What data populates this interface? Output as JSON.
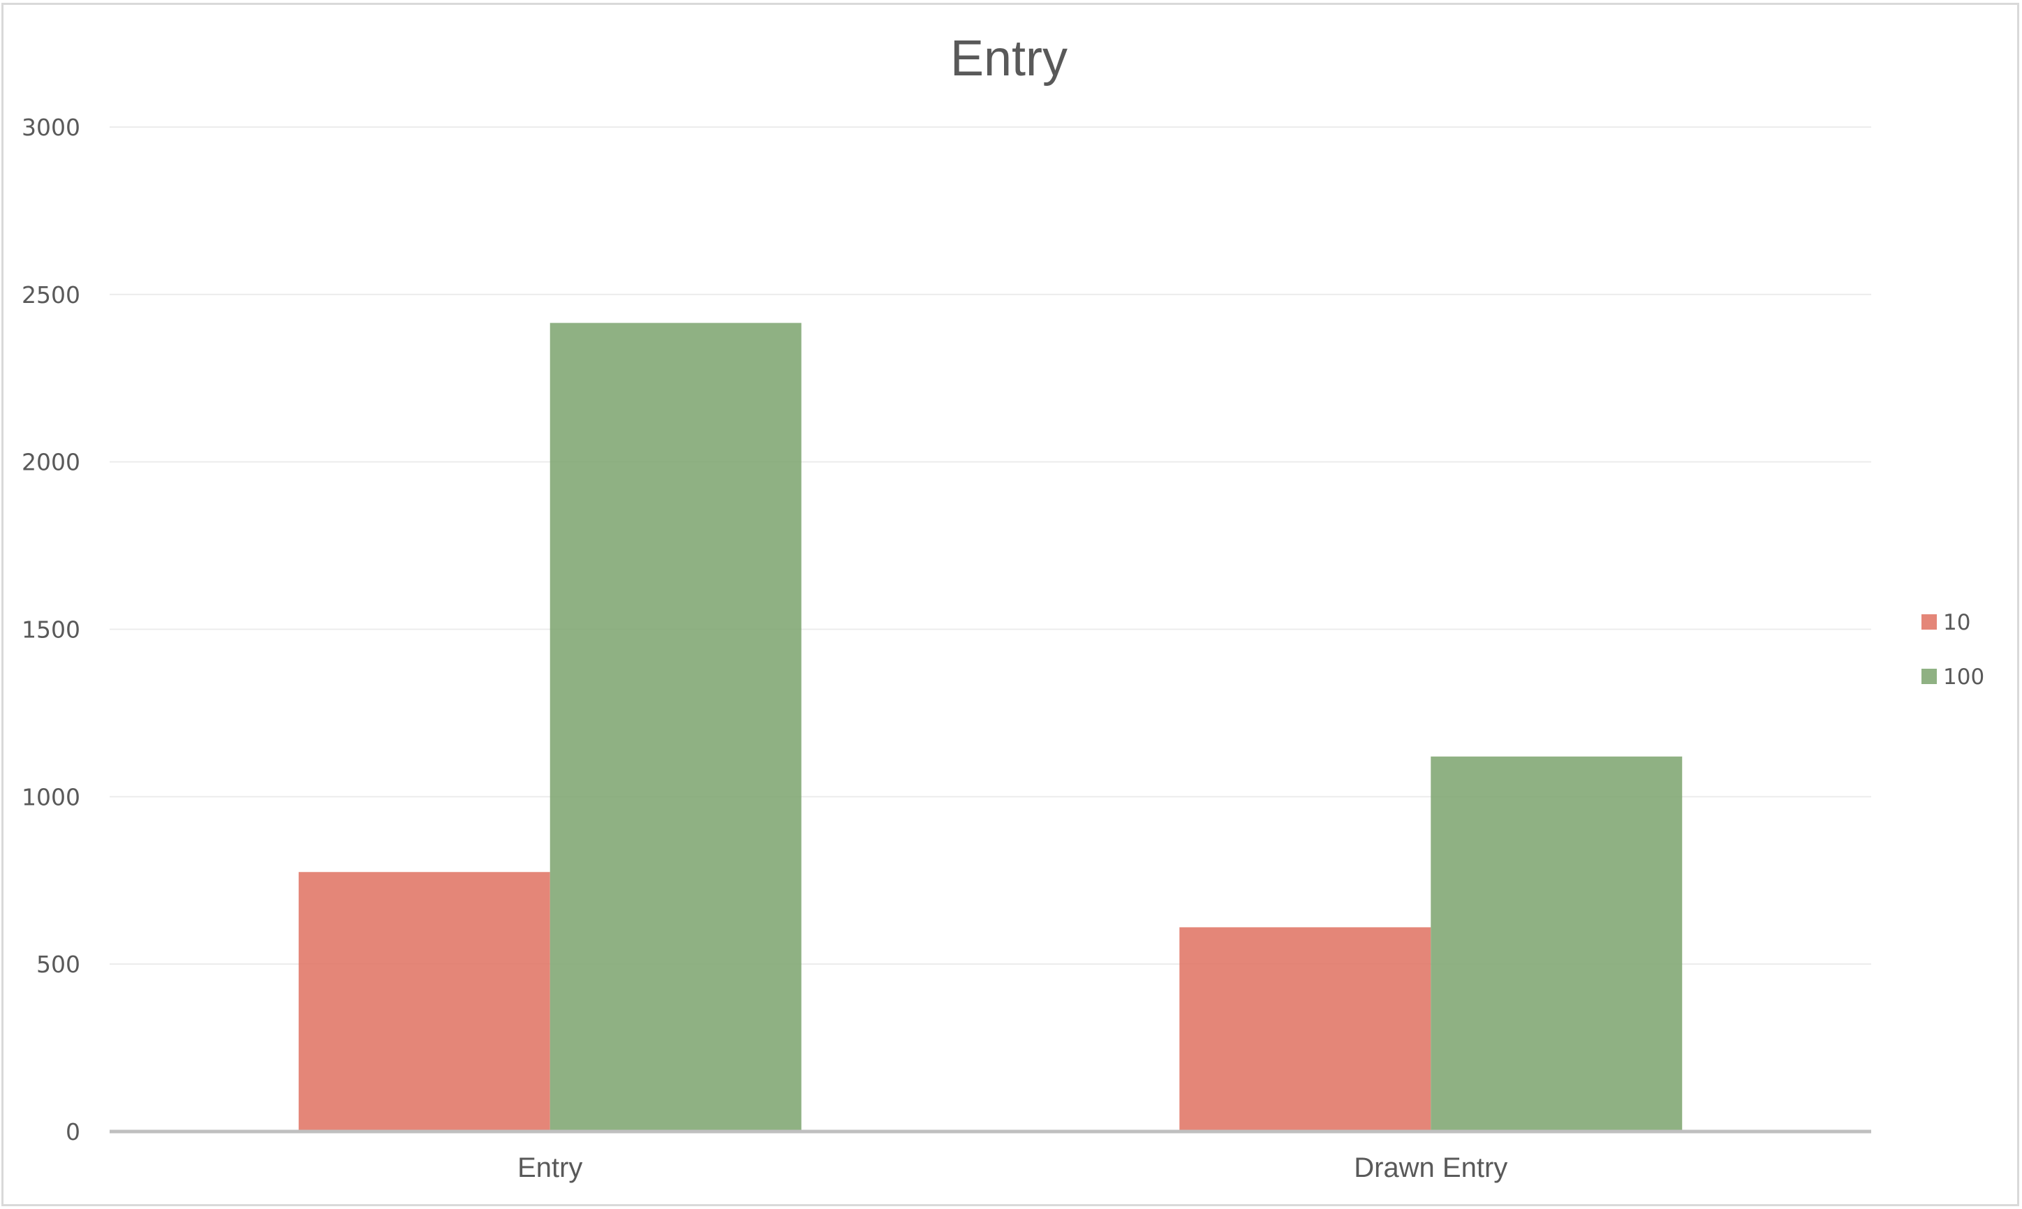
{
  "colors": {
    "series_10": "#e07565",
    "series_100": "#7fa672",
    "grid": "#ececec",
    "axis": "#bfbfbf",
    "text": "#595959"
  },
  "chart_data": {
    "type": "bar",
    "title": "Entry",
    "xlabel": "",
    "ylabel": "",
    "categories": [
      "Entry",
      "Drawn Entry"
    ],
    "series": [
      {
        "name": "10",
        "values": [
          775,
          610
        ]
      },
      {
        "name": "100",
        "values": [
          2415,
          1120
        ]
      }
    ],
    "ylim": [
      0,
      3000
    ],
    "yticks": [
      0,
      500,
      1000,
      1500,
      2000,
      2500,
      3000
    ],
    "ytick_labels": [
      "0",
      "500",
      "1000",
      "1500",
      "2000",
      "2500",
      "3000"
    ],
    "grid": true,
    "legend_position": "right"
  }
}
